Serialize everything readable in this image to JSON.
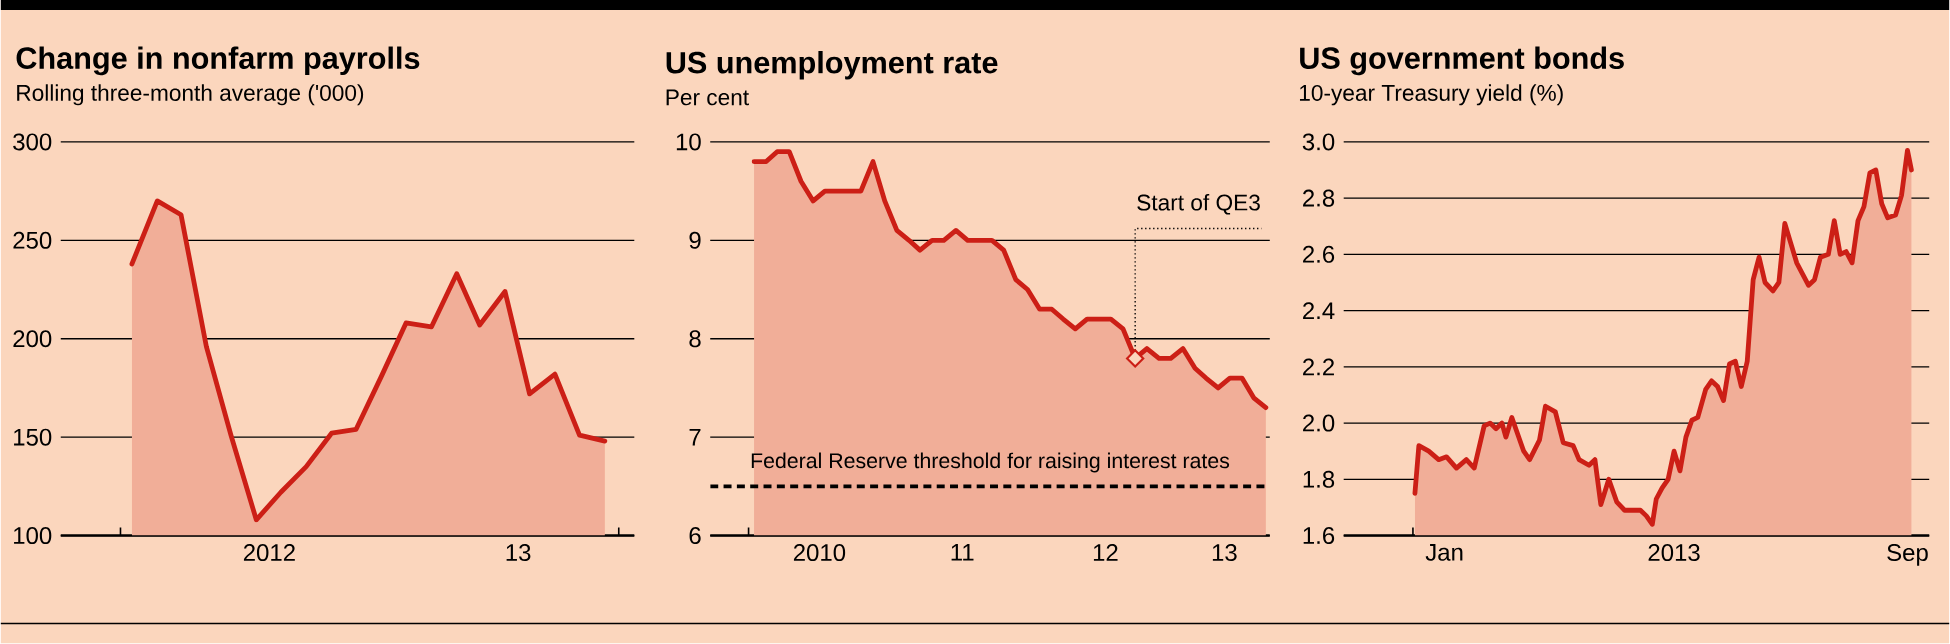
{
  "chart_data": [
    {
      "type": "area",
      "title": "Change in nonfarm payrolls",
      "subtitle": "Rolling three-month average ('000)",
      "color": "#cc1f16",
      "grid": "y",
      "x": [
        "2012-01-15",
        "2012-02-15",
        "2012-03-15",
        "2012-04-15",
        "2012-05-15",
        "2012-06-15",
        "2012-07-15",
        "2012-08-15",
        "2012-09-15",
        "2012-10-15",
        "2012-11-15",
        "2012-12-15",
        "2013-01-15",
        "2013-02-15",
        "2013-03-15",
        "2013-04-15",
        "2013-05-15",
        "2013-06-15",
        "2013-07-15",
        "2013-08-15"
      ],
      "values": [
        238,
        270,
        263,
        196,
        151,
        108,
        122,
        135,
        152,
        154,
        181,
        208,
        206,
        233,
        207,
        224,
        172,
        182,
        151,
        148
      ],
      "xlim": [
        "2011-10-20",
        "2013-09-20"
      ],
      "ylim": [
        100,
        300
      ],
      "yticks": [
        100,
        150,
        200,
        250,
        300
      ],
      "xticks": [
        {
          "value": "2012-01-01",
          "label": null
        },
        {
          "value": "2012-02-01",
          "label": null
        },
        {
          "value": "2012-03-01",
          "label": null
        },
        {
          "value": "2012-04-01",
          "label": null
        },
        {
          "value": "2012-05-01",
          "label": null
        },
        {
          "value": "2012-06-01",
          "label": null
        },
        {
          "value": "2012-07-01",
          "label": "2012"
        },
        {
          "value": "2012-08-01",
          "label": null
        },
        {
          "value": "2012-09-01",
          "label": null
        },
        {
          "value": "2012-10-01",
          "label": null
        },
        {
          "value": "2012-11-01",
          "label": null
        },
        {
          "value": "2012-12-01",
          "label": null
        },
        {
          "value": "2013-01-01",
          "label": null
        },
        {
          "value": "2013-02-01",
          "label": null
        },
        {
          "value": "2013-03-01",
          "label": null
        },
        {
          "value": "2013-04-01",
          "label": null
        },
        {
          "value": "2013-05-01",
          "label": "13"
        },
        {
          "value": "2013-06-01",
          "label": null
        },
        {
          "value": "2013-07-01",
          "label": null
        },
        {
          "value": "2013-08-01",
          "label": null
        },
        {
          "value": "2013-09-01",
          "label": null
        }
      ]
    },
    {
      "type": "area",
      "title": "US unemployment rate",
      "subtitle": "Per cent",
      "color": "#cc1f16",
      "grid": "y",
      "x": [
        "2010-01-15",
        "2010-02-15",
        "2010-03-15",
        "2010-04-15",
        "2010-05-15",
        "2010-06-15",
        "2010-07-15",
        "2010-08-15",
        "2010-09-15",
        "2010-10-15",
        "2010-11-15",
        "2010-12-15",
        "2011-01-15",
        "2011-02-15",
        "2011-03-15",
        "2011-04-15",
        "2011-05-15",
        "2011-06-15",
        "2011-07-15",
        "2011-08-15",
        "2011-09-15",
        "2011-10-15",
        "2011-11-15",
        "2011-12-15",
        "2012-01-15",
        "2012-02-15",
        "2012-03-15",
        "2012-04-15",
        "2012-05-15",
        "2012-06-15",
        "2012-07-15",
        "2012-08-15",
        "2012-09-15",
        "2012-10-15",
        "2012-11-15",
        "2012-12-15",
        "2013-01-15",
        "2013-02-15",
        "2013-03-15",
        "2013-04-15",
        "2013-05-15",
        "2013-06-15",
        "2013-07-15",
        "2013-08-15"
      ],
      "values": [
        9.8,
        9.8,
        9.9,
        9.9,
        9.6,
        9.4,
        9.5,
        9.5,
        9.5,
        9.5,
        9.8,
        9.4,
        9.1,
        9.0,
        8.9,
        9.0,
        9.0,
        9.1,
        9.0,
        9.0,
        9.0,
        8.9,
        8.6,
        8.5,
        8.3,
        8.3,
        8.2,
        8.1,
        8.2,
        8.2,
        8.2,
        8.1,
        7.8,
        7.9,
        7.8,
        7.8,
        7.9,
        7.7,
        7.6,
        7.5,
        7.6,
        7.6,
        7.4,
        7.3
      ],
      "xlim": [
        "2009-09-25",
        "2013-08-25"
      ],
      "ylim": [
        6,
        10
      ],
      "yticks": [
        6,
        7,
        8,
        9,
        10
      ],
      "xticks": [
        {
          "value": "2010-01-01",
          "label": null
        },
        {
          "value": "2010-02-01",
          "label": null
        },
        {
          "value": "2010-03-01",
          "label": null
        },
        {
          "value": "2010-04-01",
          "label": null
        },
        {
          "value": "2010-05-01",
          "label": null
        },
        {
          "value": "2010-06-01",
          "label": null
        },
        {
          "value": "2010-07-01",
          "label": "2010"
        },
        {
          "value": "2010-08-01",
          "label": null
        },
        {
          "value": "2010-09-01",
          "label": null
        },
        {
          "value": "2010-10-01",
          "label": null
        },
        {
          "value": "2010-11-01",
          "label": null
        },
        {
          "value": "2010-12-01",
          "label": null
        },
        {
          "value": "2011-01-01",
          "label": null
        },
        {
          "value": "2011-02-01",
          "label": null
        },
        {
          "value": "2011-03-01",
          "label": null
        },
        {
          "value": "2011-04-01",
          "label": null
        },
        {
          "value": "2011-05-01",
          "label": null
        },
        {
          "value": "2011-06-01",
          "label": null
        },
        {
          "value": "2011-07-01",
          "label": "11"
        },
        {
          "value": "2011-08-01",
          "label": null
        },
        {
          "value": "2011-09-01",
          "label": null
        },
        {
          "value": "2011-10-01",
          "label": null
        },
        {
          "value": "2011-11-01",
          "label": null
        },
        {
          "value": "2011-12-01",
          "label": null
        },
        {
          "value": "2012-01-01",
          "label": null
        },
        {
          "value": "2012-02-01",
          "label": null
        },
        {
          "value": "2012-03-01",
          "label": null
        },
        {
          "value": "2012-04-01",
          "label": null
        },
        {
          "value": "2012-05-01",
          "label": null
        },
        {
          "value": "2012-06-01",
          "label": null
        },
        {
          "value": "2012-07-01",
          "label": "12"
        },
        {
          "value": "2012-08-01",
          "label": null
        },
        {
          "value": "2012-09-01",
          "label": null
        },
        {
          "value": "2012-10-01",
          "label": null
        },
        {
          "value": "2012-11-01",
          "label": null
        },
        {
          "value": "2012-12-01",
          "label": null
        },
        {
          "value": "2013-01-01",
          "label": null
        },
        {
          "value": "2013-02-01",
          "label": null
        },
        {
          "value": "2013-03-01",
          "label": null
        },
        {
          "value": "2013-04-01",
          "label": null
        },
        {
          "value": "2013-05-01",
          "label": "13"
        },
        {
          "value": "2013-06-01",
          "label": null
        },
        {
          "value": "2013-07-01",
          "label": null
        },
        {
          "value": "2013-08-01",
          "label": null
        }
      ],
      "ref_lines": [
        {
          "axis": "y",
          "value": 6.5,
          "label": "Federal Reserve threshold for raising interest rates",
          "color": "#000000",
          "line_style": "dashed"
        }
      ],
      "annotations": [
        {
          "text": "Start of QE3",
          "x": "2012-09-15",
          "y": 7.8
        }
      ]
    },
    {
      "type": "area",
      "title": "US government bonds",
      "subtitle": "10-year Treasury yield (%)",
      "color": "#cc1f16",
      "grid": "y",
      "x": [
        "2013-01-02",
        "2013-01-04",
        "2013-01-09",
        "2013-01-14",
        "2013-01-18",
        "2013-01-23",
        "2013-01-28",
        "2013-02-01",
        "2013-02-06",
        "2013-02-09",
        "2013-02-12",
        "2013-02-15",
        "2013-02-17",
        "2013-02-20",
        "2013-02-23",
        "2013-02-26",
        "2013-03-01",
        "2013-03-06",
        "2013-03-09",
        "2013-03-14",
        "2013-03-18",
        "2013-03-23",
        "2013-03-26",
        "2013-03-31",
        "2013-04-03",
        "2013-04-06",
        "2013-04-10",
        "2013-04-14",
        "2013-04-18",
        "2013-04-23",
        "2013-04-26",
        "2013-04-29",
        "2013-05-02",
        "2013-05-04",
        "2013-05-07",
        "2013-05-10",
        "2013-05-13",
        "2013-05-16",
        "2013-05-19",
        "2013-05-22",
        "2013-05-25",
        "2013-05-29",
        "2013-06-01",
        "2013-06-04",
        "2013-06-07",
        "2013-06-10",
        "2013-06-13",
        "2013-06-16",
        "2013-06-19",
        "2013-06-22",
        "2013-06-25",
        "2013-06-28",
        "2013-07-02",
        "2013-07-05",
        "2013-07-08",
        "2013-07-11",
        "2013-07-14",
        "2013-07-17",
        "2013-07-20",
        "2013-07-23",
        "2013-07-26",
        "2013-07-30",
        "2013-08-02",
        "2013-08-05",
        "2013-08-08",
        "2013-08-11",
        "2013-08-14",
        "2013-08-17",
        "2013-08-20",
        "2013-08-23",
        "2013-08-26",
        "2013-08-29",
        "2013-09-02",
        "2013-09-05",
        "2013-09-08",
        "2013-09-10"
      ],
      "values": [
        1.75,
        1.92,
        1.9,
        1.87,
        1.88,
        1.84,
        1.87,
        1.84,
        1.99,
        2.0,
        1.98,
        2.0,
        1.95,
        2.02,
        1.96,
        1.9,
        1.87,
        1.94,
        2.06,
        2.04,
        1.93,
        1.92,
        1.87,
        1.85,
        1.87,
        1.71,
        1.8,
        1.72,
        1.69,
        1.69,
        1.69,
        1.67,
        1.64,
        1.73,
        1.77,
        1.8,
        1.9,
        1.83,
        1.95,
        2.01,
        2.02,
        2.12,
        2.15,
        2.13,
        2.08,
        2.21,
        2.22,
        2.13,
        2.22,
        2.51,
        2.59,
        2.5,
        2.47,
        2.5,
        2.71,
        2.64,
        2.57,
        2.53,
        2.49,
        2.51,
        2.59,
        2.6,
        2.72,
        2.6,
        2.61,
        2.57,
        2.72,
        2.77,
        2.89,
        2.9,
        2.78,
        2.73,
        2.74,
        2.81,
        2.97,
        2.9
      ],
      "xlim": [
        "2012-11-27",
        "2013-09-19"
      ],
      "ylim": [
        1.6,
        3.0
      ],
      "yticks": [
        1.6,
        1.8,
        {
          "value": 2.0,
          "label": "2.0"
        },
        2.2,
        2.4,
        2.6,
        2.8,
        {
          "value": 3.0,
          "label": "3.0"
        }
      ],
      "xticks": [
        {
          "value": "2013-01-01",
          "label": null
        },
        {
          "value": "2013-01-17",
          "label": "Jan"
        },
        {
          "value": "2013-02-01",
          "label": null
        },
        {
          "value": "2013-03-01",
          "label": null
        },
        {
          "value": "2013-04-01",
          "label": null
        },
        {
          "value": "2013-05-01",
          "label": null
        },
        {
          "value": "2013-05-13",
          "label": "2013"
        },
        {
          "value": "2013-06-01",
          "label": null
        },
        {
          "value": "2013-07-01",
          "label": null
        },
        {
          "value": "2013-08-01",
          "label": null
        },
        {
          "value": "2013-09-01",
          "label": null
        },
        {
          "value": "2013-09-08",
          "label": "Sep"
        }
      ]
    }
  ]
}
